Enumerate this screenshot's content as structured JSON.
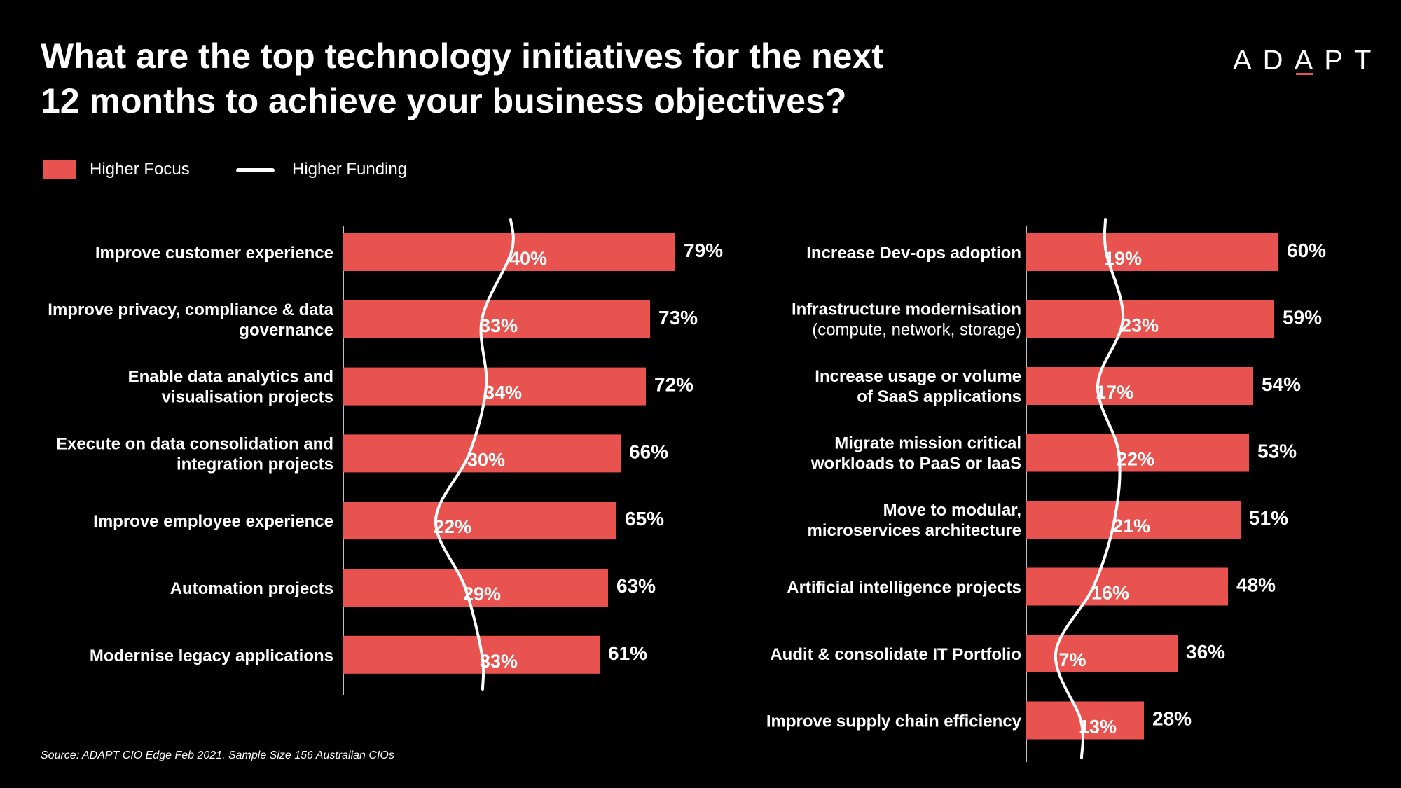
{
  "title_lines": [
    "What are the top technology initiatives for the next",
    "12 months to achieve your business objectives?"
  ],
  "logo": {
    "text": "ADAPT",
    "accent_color": "#e8524f"
  },
  "legend": {
    "focus_label": "Higher Focus",
    "funding_label": "Higher Funding"
  },
  "colors": {
    "bar": "#e8524f",
    "background": "#000000",
    "text": "#ffffff",
    "line": "#ffffff"
  },
  "chart_data": [
    {
      "type": "bar",
      "orientation": "horizontal",
      "series": [
        {
          "name": "Higher Focus",
          "values": [
            79,
            73,
            72,
            66,
            65,
            63,
            61
          ]
        },
        {
          "name": "Higher Funding",
          "values": [
            40,
            33,
            34,
            30,
            22,
            29,
            33
          ]
        }
      ],
      "categories": [
        [
          "Improve customer experience"
        ],
        [
          "Improve privacy, compliance & data",
          "governance"
        ],
        [
          "Enable data analytics and",
          "visualisation projects"
        ],
        [
          "Execute on data consolidation and",
          "integration projects"
        ],
        [
          "Improve employee experience"
        ],
        [
          "Automation projects"
        ],
        [
          "Modernise legacy applications"
        ]
      ],
      "focus_labels": [
        "79%",
        "73%",
        "72%",
        "66%",
        "65%",
        "63%",
        "61%"
      ],
      "funding_labels": [
        "40%",
        "33%",
        "34%",
        "30%",
        "22%",
        "29%",
        "33%"
      ],
      "xlim": [
        0,
        100
      ]
    },
    {
      "type": "bar",
      "orientation": "horizontal",
      "series": [
        {
          "name": "Higher Focus",
          "values": [
            60,
            59,
            54,
            53,
            51,
            48,
            36,
            28
          ]
        },
        {
          "name": "Higher Funding",
          "values": [
            19,
            23,
            17,
            22,
            21,
            16,
            7,
            13
          ]
        }
      ],
      "categories": [
        [
          "Increase Dev-ops adoption"
        ],
        [
          "Infrastructure modernisation",
          "(compute, network, storage)"
        ],
        [
          "Increase usage or volume",
          "of SaaS applications"
        ],
        [
          "Migrate mission critical",
          "workloads to PaaS or IaaS"
        ],
        [
          "Move to modular,",
          "microservices architecture"
        ],
        [
          "Artificial intelligence projects"
        ],
        [
          "Audit & consolidate IT Portfolio"
        ],
        [
          "Improve supply chain efficiency"
        ]
      ],
      "focus_labels": [
        "60%",
        "59%",
        "54%",
        "53%",
        "51%",
        "48%",
        "36%",
        "28%"
      ],
      "funding_labels": [
        "19%",
        "23%",
        "17%",
        "22%",
        "21%",
        "16%",
        "7%",
        "13%"
      ],
      "xlim": [
        0,
        100
      ]
    }
  ],
  "source": "Source: ADAPT CIO Edge Feb 2021. Sample Size 156 Australian CIOs"
}
